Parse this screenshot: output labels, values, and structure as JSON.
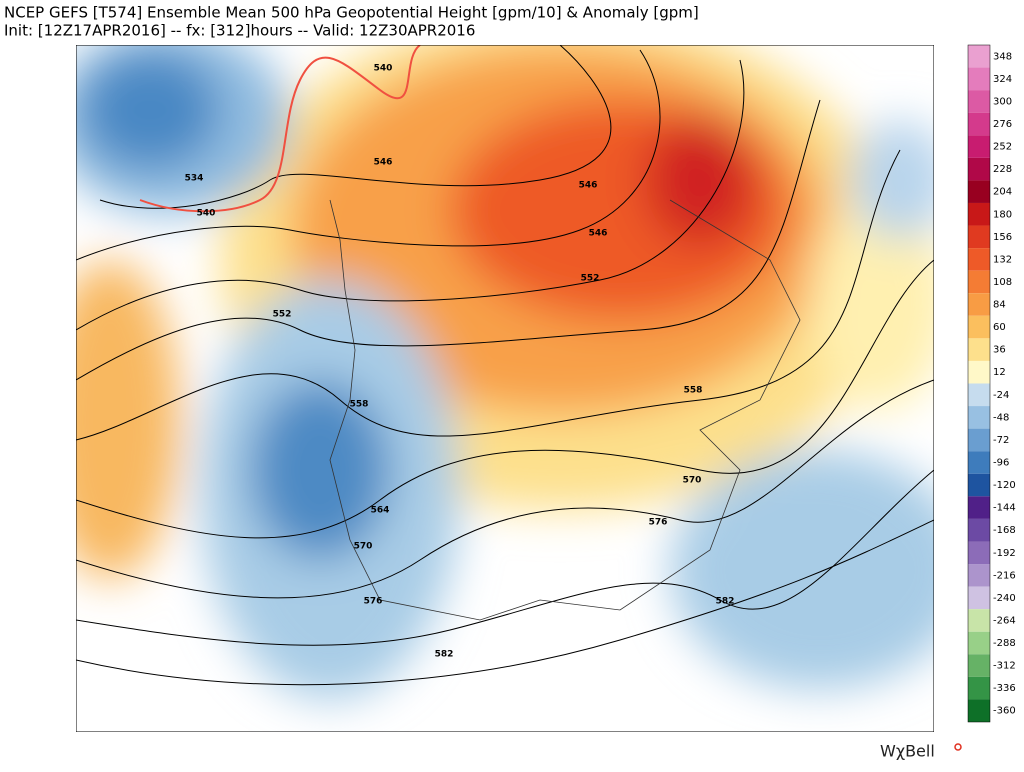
{
  "header": {
    "title": "NCEP GEFS [T574] Ensemble Mean 500 hPa Geopotential Height [gpm/10] & Anomaly [gpm]",
    "subtitle": "Init: [12Z17APR2016] -- fx: [312]hours -- Valid: 12Z30APR2016"
  },
  "contour_labels": [
    "540",
    "534",
    "540",
    "546",
    "546",
    "546",
    "552",
    "552",
    "558",
    "558",
    "564",
    "570",
    "570",
    "576",
    "576",
    "582",
    "582"
  ],
  "colorbar": {
    "labels": [
      348,
      324,
      300,
      276,
      252,
      228,
      204,
      180,
      156,
      132,
      108,
      84,
      60,
      36,
      12,
      -24,
      -48,
      -72,
      -96,
      -120,
      -144,
      -168,
      -192,
      -216,
      -240,
      -264,
      -288,
      -312,
      -336,
      -360
    ],
    "colors": [
      "#eaa0d0",
      "#e47cbc",
      "#dc5aa4",
      "#d43a8c",
      "#c81c70",
      "#b00848",
      "#980020",
      "#c81818",
      "#e03a20",
      "#ee5a28",
      "#f47c34",
      "#f89c44",
      "#fbbf5e",
      "#fde08c",
      "#fff8c8",
      "#c6dcee",
      "#98c0e2",
      "#6a9ed0",
      "#3e7cbc",
      "#1e54a0",
      "#502088",
      "#6c4aa4",
      "#8c6cb8",
      "#ac94cc",
      "#cfc2e2",
      "#c8e4a8",
      "#98d088",
      "#66b266",
      "#349446",
      "#0e7028"
    ]
  },
  "logo": "WχBell"
}
